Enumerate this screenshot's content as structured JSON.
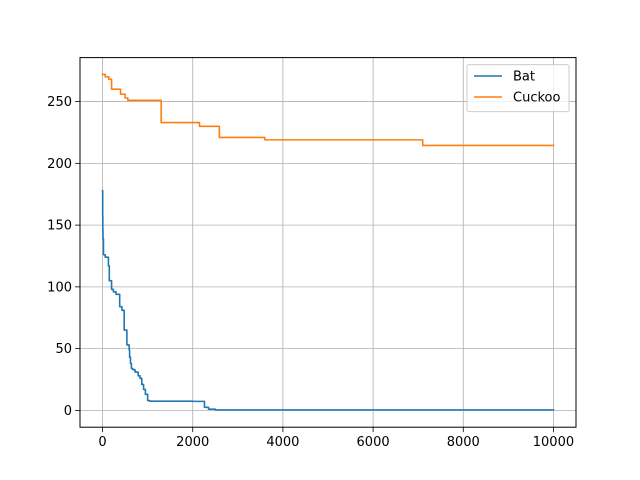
{
  "chart_data": {
    "type": "line",
    "title": "",
    "xlabel": "",
    "ylabel": "",
    "xlim": [
      -500,
      10500
    ],
    "ylim": [
      -13.6,
      285.6
    ],
    "xticks": [
      0,
      2000,
      4000,
      6000,
      8000,
      10000
    ],
    "yticks": [
      0,
      50,
      100,
      150,
      200,
      250
    ],
    "grid": true,
    "legend_position": "top-right",
    "series": [
      {
        "name": "Bat",
        "color": "#1f77b4",
        "step": true,
        "x": [
          0,
          3,
          6,
          10,
          20,
          60,
          130,
          150,
          200,
          240,
          300,
          380,
          430,
          480,
          540,
          590,
          600,
          620,
          640,
          670,
          720,
          790,
          830,
          870,
          910,
          950,
          1000,
          1050,
          2000,
          2200,
          2260,
          2350,
          2500,
          10000
        ],
        "y": [
          178,
          157,
          146,
          139,
          126,
          124,
          117,
          105,
          98,
          96,
          94,
          84,
          81,
          65,
          53,
          49,
          43,
          38,
          34,
          33,
          31,
          28,
          26,
          21,
          17,
          13,
          8,
          7.5,
          7.3,
          7.3,
          2.5,
          1,
          0.4,
          0.4
        ]
      },
      {
        "name": "Cuckoo",
        "color": "#ff7f0e",
        "step": true,
        "x": [
          0,
          60,
          140,
          200,
          400,
          500,
          560,
          1300,
          2150,
          2590,
          3600,
          7100,
          10000
        ],
        "y": [
          272,
          270,
          268,
          260,
          256,
          253,
          251,
          233,
          230,
          221,
          219,
          214.5,
          214.5
        ]
      }
    ]
  }
}
